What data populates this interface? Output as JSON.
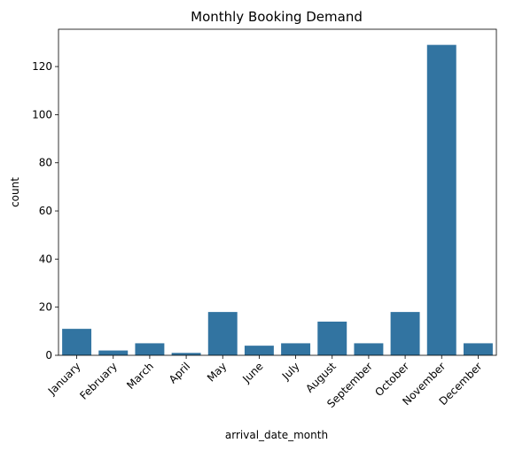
{
  "chart_data": {
    "type": "bar",
    "title": "Monthly Booking Demand",
    "xlabel": "arrival_date_month",
    "ylabel": "count",
    "categories": [
      "January",
      "February",
      "March",
      "April",
      "May",
      "June",
      "July",
      "August",
      "September",
      "October",
      "November",
      "December"
    ],
    "values": [
      11,
      2,
      5,
      1,
      18,
      4,
      5,
      14,
      5,
      18,
      129,
      5
    ],
    "ylim": [
      0,
      135.5
    ],
    "yticks": [
      0,
      20,
      40,
      60,
      80,
      100,
      120
    ],
    "x_tick_rotation_deg": 45,
    "grid": false,
    "legend": "none",
    "bar_color": "#3274a1"
  }
}
